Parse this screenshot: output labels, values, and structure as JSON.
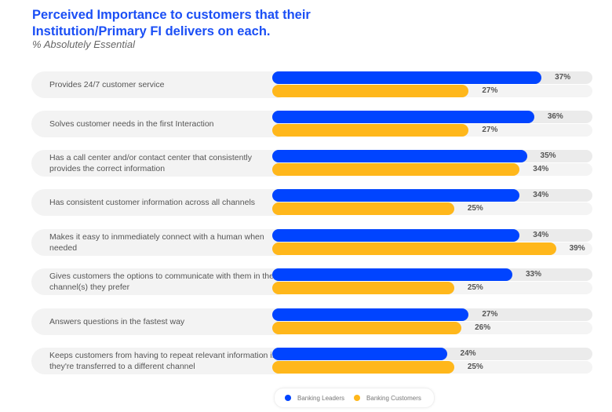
{
  "chart_data": {
    "type": "bar",
    "orientation": "horizontal",
    "title": "Perceived Importance to customers that their Institution/Primary FI delivers on each.",
    "subtitle": "% Absolutely Essential",
    "categories": [
      "Provides 24/7 customer service",
      "Solves customer needs in the first Interaction",
      "Has a call center and/or contact center that consistently provides the correct information",
      "Has consistent customer information across all channels",
      "Makes it easy to inmmediately connect with a human when needed",
      "Gives customers the options to communicate with them in the channel(s) they prefer",
      "Answers questions in the fastest way",
      "Keeps customers from having to repeat relevant information if they're transferred to a different channel"
    ],
    "series": [
      {
        "name": "Banking Leaders",
        "color": "#0044ff",
        "values": [
          37,
          36,
          35,
          34,
          34,
          33,
          27,
          24
        ],
        "labels": [
          "37%",
          "36%",
          "35%",
          "34%",
          "34%",
          "33%",
          "27%",
          "24%"
        ]
      },
      {
        "name": "Banking Customers",
        "color": "#ffb71b",
        "values": [
          27,
          27,
          34,
          25,
          39,
          25,
          26,
          25
        ],
        "labels": [
          "27%",
          "27%",
          "34%",
          "25%",
          "39%",
          "25%",
          "26%",
          "25%"
        ]
      }
    ],
    "xlim": [
      0,
      44
    ],
    "grid": false,
    "legend": "bottom"
  }
}
